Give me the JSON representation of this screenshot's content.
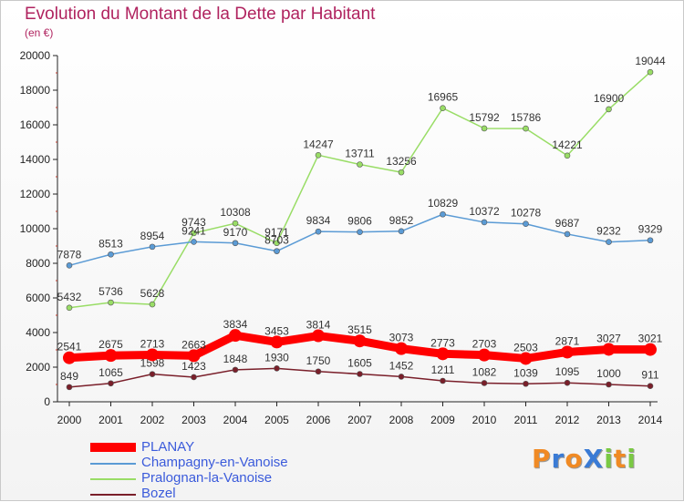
{
  "title": "Evolution du Montant de la Dette par Habitant",
  "subtitle": "(en €)",
  "logo": {
    "text": "ProXiti",
    "letters": [
      {
        "ch": "P",
        "color": "#f08a24"
      },
      {
        "ch": "r",
        "color": "#3a7bd5"
      },
      {
        "ch": "o",
        "color": "#f08a24"
      },
      {
        "ch": "X",
        "color": "#3a7bd5"
      },
      {
        "ch": "i",
        "color": "#7ac943"
      },
      {
        "ch": "t",
        "color": "#f08a24"
      },
      {
        "ch": "i",
        "color": "#7ac943"
      }
    ]
  },
  "chart_data": {
    "type": "line",
    "title": "Evolution du Montant de la Dette par Habitant",
    "ylabel": "(en €)",
    "xlabel": "",
    "ylim": [
      0,
      20000
    ],
    "yticks": [
      0,
      2000,
      4000,
      6000,
      8000,
      10000,
      12000,
      14000,
      16000,
      18000,
      20000
    ],
    "grid": false,
    "legend_position": "bottom-left",
    "categories": [
      "2000",
      "2001",
      "2002",
      "2003",
      "2004",
      "2005",
      "2006",
      "2007",
      "2008",
      "2009",
      "2010",
      "2011",
      "2012",
      "2013",
      "2014"
    ],
    "series": [
      {
        "name": "PLANAY",
        "color": "#ff0000",
        "emphasis": true,
        "values": [
          2541,
          2675,
          2713,
          2663,
          3834,
          3453,
          3814,
          3515,
          3073,
          2773,
          2703,
          2503,
          2871,
          3027,
          3021
        ]
      },
      {
        "name": "Champagny-en-Vanoise",
        "color": "#5b9bd5",
        "emphasis": false,
        "values": [
          7878,
          8513,
          8954,
          9241,
          9170,
          8703,
          9834,
          9806,
          9852,
          10829,
          10372,
          10278,
          9687,
          9232,
          9329
        ]
      },
      {
        "name": "Pralognan-la-Vanoise",
        "color": "#99dd66",
        "emphasis": false,
        "values": [
          5432,
          5736,
          5628,
          9743,
          10308,
          9171,
          14247,
          13711,
          13256,
          16965,
          15792,
          15786,
          14221,
          16900,
          19044
        ]
      },
      {
        "name": "Bozel",
        "color": "#7a1f2a",
        "emphasis": false,
        "values": [
          849,
          1065,
          1598,
          1423,
          1848,
          1930,
          1750,
          1605,
          1452,
          1211,
          1082,
          1039,
          1095,
          1000,
          911
        ]
      }
    ]
  }
}
